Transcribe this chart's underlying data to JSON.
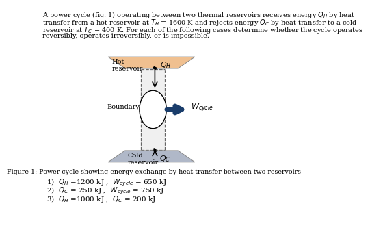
{
  "bg_color": "#FFFFFF",
  "text_color": "#000000",
  "hot_color": "#F0C090",
  "cold_color": "#B0B8C8",
  "box_fill": "#E8E8E8",
  "arrow_color": "#1A3D6B",
  "para_lines": [
    "A power cycle (fig. 1) operating between two thermal reservoirs receives energy $Q_H$ by heat",
    "transfer from a hot reservoir at $T_H$ = 1600 K and rejects energy $Q_C$ by heat transfer to a cold",
    "reservoir at $T_C$ = 400 K. For each of the following cases determine whether the cycle operates",
    "reversibly, operates irreversibly, or is impossible."
  ],
  "fig_caption": "Figure 1: Power cycle showing energy exchange by heat transfer between two reservoirs",
  "item1": "1)  $Q_H$ =1200 kJ ,  $W_{cycle}$ = 650 kJ",
  "item2": "2)  $Q_C$ = 250 kJ ,  $W_{cycle}$ = 750 kJ",
  "item3": "3)  $Q_H$ =1000 kJ ,  $Q_C$ = 200 kJ",
  "hot_label1": "Hot",
  "hot_label2": "reservoir",
  "cold_label1": "Cold",
  "cold_label2": "reservoir",
  "qh_label": "$Q_H$",
  "qc_label": "$Q_C$",
  "wcycle_label": "$W_{cycle}$",
  "boundary_label": "Boundary"
}
